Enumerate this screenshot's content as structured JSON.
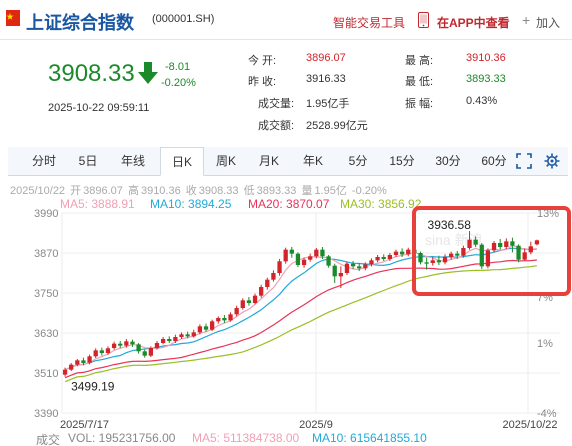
{
  "header": {
    "title": "上证综合指数",
    "code": "(000001.SH)",
    "smart_trade": "智能交易工具",
    "open_app": "在APP中查看",
    "add": "加入"
  },
  "quote": {
    "price": "3908.33",
    "change": "-8.01",
    "change_pct": "-0.20%",
    "datetime": "2025-10-22  09:59:11",
    "open_label": "今      开:",
    "open": "3896.07",
    "prev_label": "昨      收:",
    "prev_close": "3916.33",
    "volume_label": "成交量:",
    "volume": "1.95亿手",
    "amount_label": "成交额:",
    "amount": "2528.99亿元",
    "high_label": "最      高:",
    "high": "3910.36",
    "low_label": "最      低:",
    "low": "3893.33",
    "amp_label": "振      幅:",
    "amplitude": "0.43%"
  },
  "tabs": [
    "分时",
    "5日",
    "年线",
    "日K",
    "周K",
    "月K",
    "年K",
    "5分",
    "15分",
    "30分",
    "60分"
  ],
  "active_tab": "日K",
  "ohlc_line": {
    "date": "2025/10/22",
    "open_label": "开",
    "open": "3896.07",
    "high_label": "高",
    "high": "3910.36",
    "close_label": "收",
    "close": "3908.33",
    "low_label": "低",
    "low": "3893.33",
    "vol_label": "量",
    "vol": "1.95亿",
    "pct": "-0.20%"
  },
  "ma": {
    "ma5": "MA5: 3888.91",
    "ma10": "MA10: 3894.25",
    "ma20": "MA20: 3870.07",
    "ma30": "MA30: 3856.92"
  },
  "colors": {
    "up": "#d2242a",
    "down": "#1b8a2a",
    "ma5": "#f0a0b4",
    "ma10": "#23a9d8",
    "ma20": "#e8335a",
    "ma30": "#9bbf24",
    "highlight": "#e8413c",
    "title_blue": "#1a57a3"
  },
  "chart_data": {
    "type": "candlestick",
    "y_ticks": [
      "3990",
      "3870",
      "3750",
      "3630",
      "3510",
      "3390"
    ],
    "pct_ticks": [
      "13%",
      "7%",
      "1%",
      "-4%"
    ],
    "x_labels": [
      "2025/7/17",
      "2025/9",
      "2025/10/22"
    ],
    "ylim": [
      3390,
      3990
    ],
    "annotations": {
      "max": "3936.58",
      "min": "3499.19"
    },
    "watermark": "sina 新浪",
    "candles": [
      {
        "o": 3505,
        "c": 3520,
        "h": 3526,
        "l": 3499
      },
      {
        "o": 3520,
        "c": 3535,
        "h": 3540,
        "l": 3516
      },
      {
        "o": 3535,
        "c": 3548,
        "h": 3552,
        "l": 3530
      },
      {
        "o": 3548,
        "c": 3540,
        "h": 3556,
        "l": 3533
      },
      {
        "o": 3541,
        "c": 3560,
        "h": 3565,
        "l": 3536
      },
      {
        "o": 3560,
        "c": 3578,
        "h": 3584,
        "l": 3555
      },
      {
        "o": 3578,
        "c": 3570,
        "h": 3586,
        "l": 3562
      },
      {
        "o": 3570,
        "c": 3584,
        "h": 3590,
        "l": 3565
      },
      {
        "o": 3585,
        "c": 3598,
        "h": 3604,
        "l": 3580
      },
      {
        "o": 3598,
        "c": 3592,
        "h": 3606,
        "l": 3584
      },
      {
        "o": 3592,
        "c": 3605,
        "h": 3612,
        "l": 3586
      },
      {
        "o": 3604,
        "c": 3596,
        "h": 3610,
        "l": 3588
      },
      {
        "o": 3596,
        "c": 3575,
        "h": 3600,
        "l": 3568
      },
      {
        "o": 3575,
        "c": 3562,
        "h": 3580,
        "l": 3556
      },
      {
        "o": 3562,
        "c": 3585,
        "h": 3590,
        "l": 3558
      },
      {
        "o": 3585,
        "c": 3600,
        "h": 3606,
        "l": 3580
      },
      {
        "o": 3600,
        "c": 3612,
        "h": 3618,
        "l": 3596
      },
      {
        "o": 3612,
        "c": 3606,
        "h": 3620,
        "l": 3600
      },
      {
        "o": 3606,
        "c": 3618,
        "h": 3625,
        "l": 3600
      },
      {
        "o": 3618,
        "c": 3626,
        "h": 3632,
        "l": 3612
      },
      {
        "o": 3626,
        "c": 3620,
        "h": 3634,
        "l": 3614
      },
      {
        "o": 3620,
        "c": 3632,
        "h": 3640,
        "l": 3616
      },
      {
        "o": 3632,
        "c": 3650,
        "h": 3656,
        "l": 3626
      },
      {
        "o": 3650,
        "c": 3640,
        "h": 3658,
        "l": 3634
      },
      {
        "o": 3640,
        "c": 3665,
        "h": 3670,
        "l": 3636
      },
      {
        "o": 3665,
        "c": 3675,
        "h": 3680,
        "l": 3658
      },
      {
        "o": 3675,
        "c": 3668,
        "h": 3684,
        "l": 3660
      },
      {
        "o": 3668,
        "c": 3686,
        "h": 3692,
        "l": 3664
      },
      {
        "o": 3686,
        "c": 3705,
        "h": 3712,
        "l": 3680
      },
      {
        "o": 3705,
        "c": 3728,
        "h": 3734,
        "l": 3700
      },
      {
        "o": 3728,
        "c": 3720,
        "h": 3738,
        "l": 3712
      },
      {
        "o": 3720,
        "c": 3742,
        "h": 3748,
        "l": 3716
      },
      {
        "o": 3742,
        "c": 3768,
        "h": 3775,
        "l": 3736
      },
      {
        "o": 3768,
        "c": 3790,
        "h": 3796,
        "l": 3760
      },
      {
        "o": 3790,
        "c": 3810,
        "h": 3818,
        "l": 3784
      },
      {
        "o": 3810,
        "c": 3845,
        "h": 3852,
        "l": 3802
      },
      {
        "o": 3845,
        "c": 3880,
        "h": 3886,
        "l": 3838
      },
      {
        "o": 3880,
        "c": 3868,
        "h": 3888,
        "l": 3856
      },
      {
        "o": 3868,
        "c": 3834,
        "h": 3872,
        "l": 3828
      },
      {
        "o": 3834,
        "c": 3850,
        "h": 3856,
        "l": 3826
      },
      {
        "o": 3850,
        "c": 3860,
        "h": 3868,
        "l": 3844
      },
      {
        "o": 3860,
        "c": 3880,
        "h": 3885,
        "l": 3854
      },
      {
        "o": 3880,
        "c": 3860,
        "h": 3888,
        "l": 3852
      },
      {
        "o": 3860,
        "c": 3832,
        "h": 3864,
        "l": 3826
      },
      {
        "o": 3832,
        "c": 3800,
        "h": 3838,
        "l": 3780
      },
      {
        "o": 3800,
        "c": 3810,
        "h": 3830,
        "l": 3765
      },
      {
        "o": 3810,
        "c": 3838,
        "h": 3844,
        "l": 3804
      },
      {
        "o": 3838,
        "c": 3830,
        "h": 3846,
        "l": 3822
      },
      {
        "o": 3830,
        "c": 3824,
        "h": 3840,
        "l": 3816
      },
      {
        "o": 3824,
        "c": 3836,
        "h": 3842,
        "l": 3818
      },
      {
        "o": 3836,
        "c": 3848,
        "h": 3854,
        "l": 3830
      },
      {
        "o": 3848,
        "c": 3858,
        "h": 3864,
        "l": 3842
      },
      {
        "o": 3858,
        "c": 3852,
        "h": 3866,
        "l": 3846
      },
      {
        "o": 3852,
        "c": 3864,
        "h": 3870,
        "l": 3846
      },
      {
        "o": 3864,
        "c": 3874,
        "h": 3880,
        "l": 3858
      },
      {
        "o": 3874,
        "c": 3866,
        "h": 3884,
        "l": 3858
      },
      {
        "o": 3866,
        "c": 3880,
        "h": 3886,
        "l": 3860
      },
      {
        "o": 3880,
        "c": 3870,
        "h": 3888,
        "l": 3862
      },
      {
        "o": 3870,
        "c": 3842,
        "h": 3874,
        "l": 3836
      },
      {
        "o": 3842,
        "c": 3838,
        "h": 3856,
        "l": 3820
      },
      {
        "o": 3840,
        "c": 3848,
        "h": 3858,
        "l": 3832
      },
      {
        "o": 3848,
        "c": 3842,
        "h": 3862,
        "l": 3834
      },
      {
        "o": 3842,
        "c": 3858,
        "h": 3866,
        "l": 3836
      },
      {
        "o": 3858,
        "c": 3868,
        "h": 3874,
        "l": 3850
      },
      {
        "o": 3868,
        "c": 3862,
        "h": 3876,
        "l": 3852
      },
      {
        "o": 3862,
        "c": 3885,
        "h": 3892,
        "l": 3856
      },
      {
        "o": 3885,
        "c": 3910,
        "h": 3936,
        "l": 3880
      },
      {
        "o": 3910,
        "c": 3895,
        "h": 3920,
        "l": 3888
      },
      {
        "o": 3895,
        "c": 3830,
        "h": 3900,
        "l": 3822
      },
      {
        "o": 3830,
        "c": 3878,
        "h": 3884,
        "l": 3824
      },
      {
        "o": 3878,
        "c": 3900,
        "h": 3906,
        "l": 3872
      },
      {
        "o": 3900,
        "c": 3888,
        "h": 3912,
        "l": 3880
      },
      {
        "o": 3888,
        "c": 3905,
        "h": 3914,
        "l": 3882
      },
      {
        "o": 3905,
        "c": 3892,
        "h": 3916,
        "l": 3872
      },
      {
        "o": 3892,
        "c": 3850,
        "h": 3896,
        "l": 3842
      },
      {
        "o": 3850,
        "c": 3872,
        "h": 3884,
        "l": 3846
      },
      {
        "o": 3872,
        "c": 3890,
        "h": 3904,
        "l": 3866
      },
      {
        "o": 3896,
        "c": 3908,
        "h": 3910,
        "l": 3893
      }
    ]
  },
  "bottom": {
    "vol_label": "成交",
    "vol": "VOL: 195231756.00",
    "ma5": "MA5: 511384738.00",
    "ma10": "MA10: 615641855.10"
  }
}
